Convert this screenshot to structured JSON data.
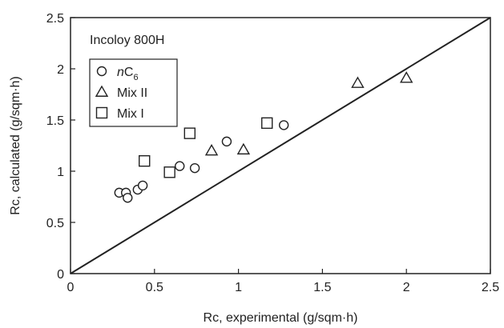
{
  "chart_data": {
    "type": "scatter",
    "xlabel": "Rc, experimental (g/sqm·h)",
    "ylabel": "Rc, calculated (g/sqm·h)",
    "xlim": [
      0,
      2.5
    ],
    "ylim": [
      0,
      2.5
    ],
    "x_ticks": [
      "0",
      "0.5",
      "1",
      "1.5",
      "2",
      "2.5"
    ],
    "y_ticks": [
      "0",
      "0.5",
      "1",
      "1.5",
      "2",
      "2.5"
    ],
    "annotation": "Incoloy 800H",
    "grid": false,
    "legend_position": "top-left",
    "reference_line": {
      "x": [
        0,
        2.5
      ],
      "y": [
        0,
        2.5
      ]
    },
    "series": [
      {
        "name_prefix": "n",
        "name_main": "C",
        "name_sub": "6",
        "marker": "circle",
        "points": [
          {
            "x": 0.29,
            "y": 0.79
          },
          {
            "x": 0.33,
            "y": 0.79
          },
          {
            "x": 0.34,
            "y": 0.74
          },
          {
            "x": 0.4,
            "y": 0.82
          },
          {
            "x": 0.43,
            "y": 0.86
          },
          {
            "x": 0.65,
            "y": 1.05
          },
          {
            "x": 0.74,
            "y": 1.03
          },
          {
            "x": 0.93,
            "y": 1.29
          },
          {
            "x": 1.27,
            "y": 1.45
          }
        ]
      },
      {
        "name": "Mix II",
        "marker": "triangle",
        "points": [
          {
            "x": 0.84,
            "y": 1.2
          },
          {
            "x": 1.03,
            "y": 1.21
          },
          {
            "x": 1.71,
            "y": 1.86
          },
          {
            "x": 2.0,
            "y": 1.91
          }
        ]
      },
      {
        "name": "Mix I",
        "marker": "square",
        "points": [
          {
            "x": 0.44,
            "y": 1.1
          },
          {
            "x": 0.59,
            "y": 0.99
          },
          {
            "x": 0.71,
            "y": 1.37
          },
          {
            "x": 1.17,
            "y": 1.47
          }
        ]
      }
    ]
  }
}
